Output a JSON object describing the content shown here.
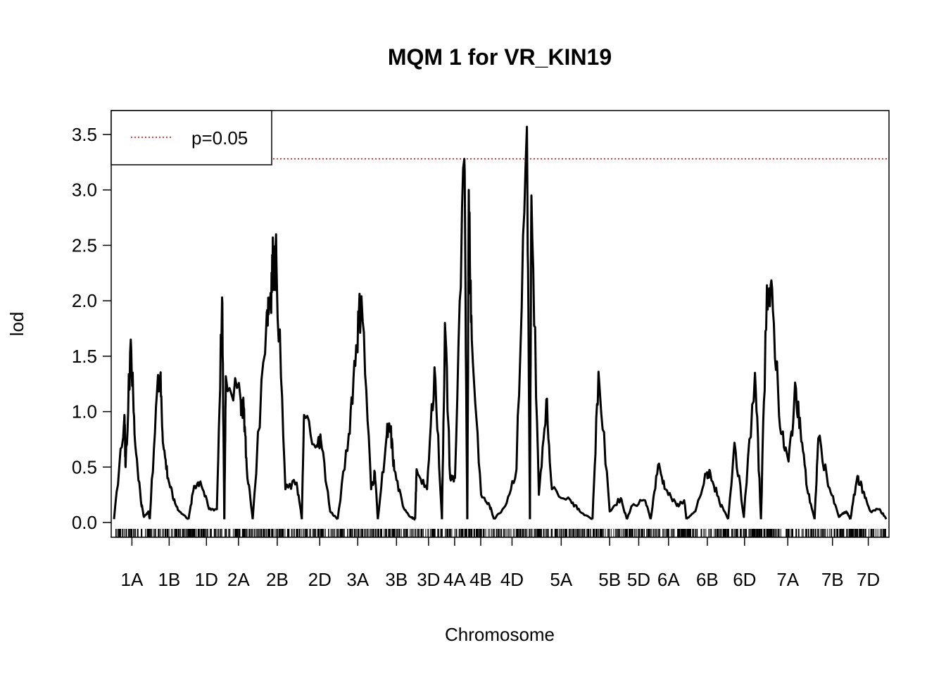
{
  "chart_data": {
    "type": "line",
    "title": "MQM 1 for VR_KIN19",
    "xlabel": "Chromosome",
    "ylabel": "lod",
    "ylim": [
      0,
      3.6
    ],
    "yticks": [
      "0.0",
      "0.5",
      "1.0",
      "1.5",
      "2.0",
      "2.5",
      "3.0",
      "3.5"
    ],
    "threshold": {
      "label": "p=0.05",
      "value": 3.28,
      "color": "#cc0000"
    },
    "legend_position": "top-left",
    "line_color": "#000000",
    "chromosomes": [
      {
        "name": "1A",
        "start": 0,
        "end": 96,
        "peaks": [
          [
            28,
            0.97
          ],
          [
            31,
            0.5
          ],
          [
            45,
            1.65
          ],
          [
            55,
            0.8
          ],
          [
            72,
            0.2
          ],
          [
            80,
            0.05
          ],
          [
            92,
            0.1
          ]
        ]
      },
      {
        "name": "1B",
        "start": 96,
        "end": 200,
        "peaks": [
          [
            118,
            1.33
          ],
          [
            124,
            1.31
          ],
          [
            132,
            0.7
          ],
          [
            145,
            0.4
          ],
          [
            160,
            0.2
          ],
          [
            175,
            0.1
          ]
        ]
      },
      {
        "name": "1D",
        "start": 200,
        "end": 296,
        "peaks": [
          [
            215,
            0.33
          ],
          [
            232,
            0.37
          ],
          [
            255,
            0.12
          ],
          [
            276,
            0.12
          ],
          [
            290,
            2.03
          ]
        ]
      },
      {
        "name": "2A",
        "start": 296,
        "end": 372,
        "peaks": [
          [
            300,
            1.32
          ],
          [
            340,
            1.1
          ],
          [
            348,
            1.04
          ],
          [
            356,
            0.5
          ]
        ]
      },
      {
        "name": "2B",
        "start": 372,
        "end": 504,
        "peaks": [
          [
            410,
            1.9
          ],
          [
            420,
            2.07
          ],
          [
            427,
            2.37
          ],
          [
            436,
            2.33
          ],
          [
            460,
            0.3
          ],
          [
            490,
            0.36
          ]
        ]
      },
      {
        "name": "2D",
        "start": 504,
        "end": 600,
        "peaks": [
          [
            510,
            0.97
          ],
          [
            545,
            0.7
          ],
          [
            555,
            0.75
          ],
          [
            580,
            0.1
          ]
        ]
      },
      {
        "name": "3A",
        "start": 600,
        "end": 708,
        "peaks": [
          [
            630,
            0.8
          ],
          [
            650,
            1.6
          ],
          [
            664,
            2.04
          ],
          [
            690,
            0.3
          ],
          [
            700,
            0.45
          ]
        ]
      },
      {
        "name": "3B",
        "start": 708,
        "end": 808,
        "peaks": [
          [
            732,
            0.8
          ],
          [
            742,
            0.83
          ],
          [
            752,
            0.47
          ],
          [
            775,
            0.15
          ],
          [
            795,
            0.05
          ]
        ]
      },
      {
        "name": "3D",
        "start": 808,
        "end": 880,
        "peaks": [
          [
            812,
            0.48
          ],
          [
            840,
            0.3
          ],
          [
            860,
            1.4
          ]
        ]
      },
      {
        "name": "4A",
        "start": 880,
        "end": 948,
        "peaks": [
          [
            888,
            1.8
          ],
          [
            902,
            0.4
          ],
          [
            915,
            0.4
          ],
          [
            940,
            3.28
          ]
        ]
      },
      {
        "name": "4B",
        "start": 948,
        "end": 1020,
        "peaks": [
          [
            952,
            3.0
          ],
          [
            960,
            1.65
          ],
          [
            985,
            0.25
          ],
          [
            1008,
            0.15
          ]
        ]
      },
      {
        "name": "4D",
        "start": 1020,
        "end": 1116,
        "peaks": [
          [
            1050,
            0.15
          ],
          [
            1080,
            0.48
          ],
          [
            1108,
            3.57
          ]
        ]
      },
      {
        "name": "5A",
        "start": 1116,
        "end": 1284,
        "peaks": [
          [
            1120,
            2.95
          ],
          [
            1140,
            0.25
          ],
          [
            1160,
            1.11
          ],
          [
            1175,
            0.3
          ],
          [
            1225,
            0.2
          ],
          [
            1250,
            0.1
          ]
        ]
      },
      {
        "name": "5B",
        "start": 1284,
        "end": 1376,
        "peaks": [
          [
            1300,
            1.36
          ],
          [
            1330,
            0.1
          ],
          [
            1360,
            0.22
          ]
        ]
      },
      {
        "name": "5D",
        "start": 1376,
        "end": 1440,
        "peaks": [
          [
            1390,
            0.15
          ],
          [
            1425,
            0.2
          ]
        ]
      },
      {
        "name": "6A",
        "start": 1440,
        "end": 1536,
        "peaks": [
          [
            1460,
            0.52
          ],
          [
            1480,
            0.3
          ],
          [
            1510,
            0.15
          ],
          [
            1530,
            0.2
          ]
        ]
      },
      {
        "name": "6B",
        "start": 1536,
        "end": 1648,
        "peaks": [
          [
            1560,
            0.1
          ],
          [
            1590,
            0.44
          ],
          [
            1600,
            0.45
          ],
          [
            1625,
            0.18
          ]
        ]
      },
      {
        "name": "6D",
        "start": 1648,
        "end": 1736,
        "peaks": [
          [
            1665,
            0.72
          ],
          [
            1690,
            0.05
          ],
          [
            1720,
            1.35
          ]
        ]
      },
      {
        "name": "7A",
        "start": 1736,
        "end": 1880,
        "peaks": [
          [
            1752,
            2.14
          ],
          [
            1768,
            1.91
          ],
          [
            1790,
            0.8
          ],
          [
            1810,
            0.55
          ],
          [
            1830,
            1.21
          ],
          [
            1842,
            0.85
          ],
          [
            1860,
            0.3
          ]
        ]
      },
      {
        "name": "7B",
        "start": 1880,
        "end": 1976,
        "peaks": [
          [
            1890,
            0.76
          ],
          [
            1920,
            0.31
          ],
          [
            1945,
            0.05
          ],
          [
            1965,
            0.1
          ]
        ]
      },
      {
        "name": "7D",
        "start": 1976,
        "end": 2072,
        "peaks": [
          [
            1995,
            0.42
          ],
          [
            2010,
            0.28
          ],
          [
            2030,
            0.1
          ],
          [
            2055,
            0.12
          ]
        ]
      }
    ]
  }
}
